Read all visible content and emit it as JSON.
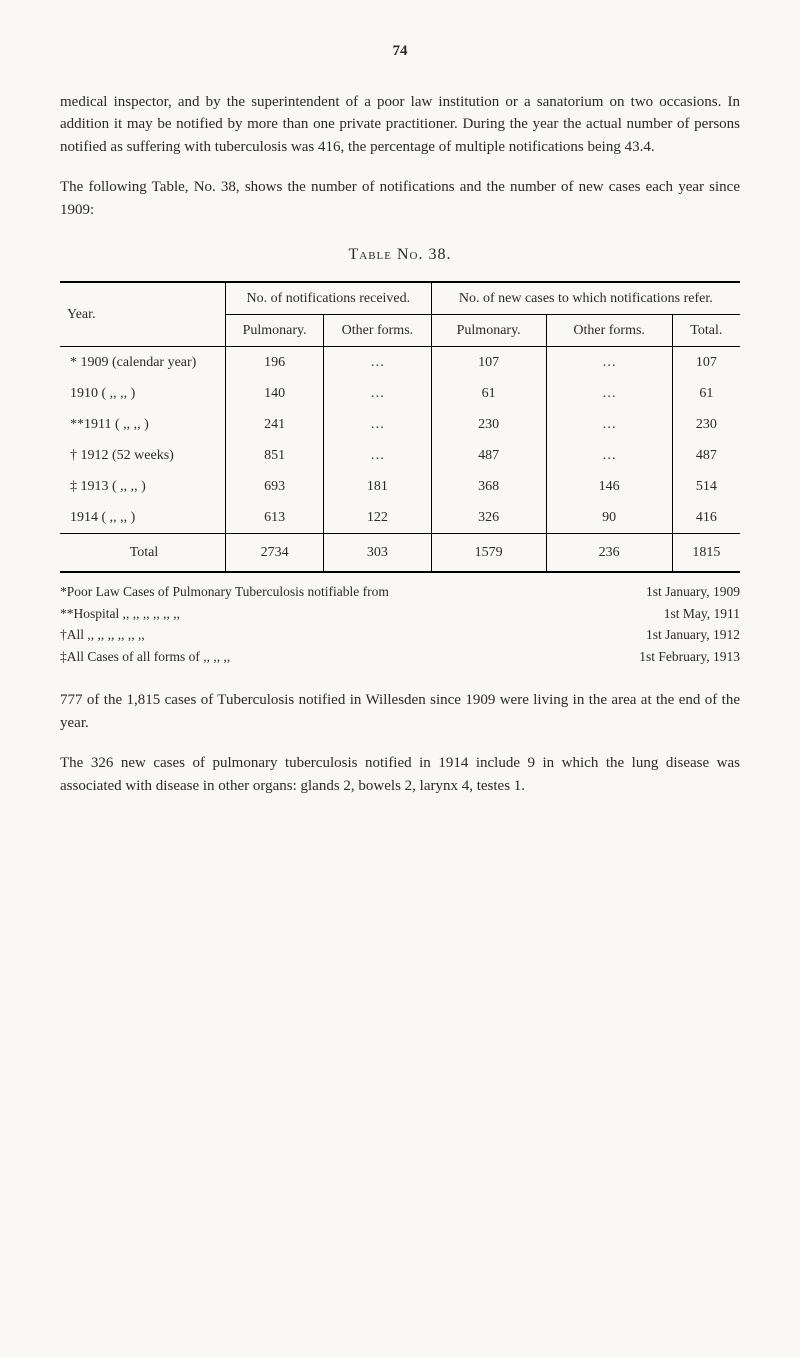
{
  "page_number": "74",
  "paragraphs": {
    "p1": "medical inspector, and by the superintendent of a poor law institution or a sanatorium on two occasions. In addition it may be notified by more than one private practitioner. During the year the actual number of persons notified as suffering with tuberculosis was 416, the percentage of multiple notifications being 43.4.",
    "p2": "The following Table, No. 38, shows the number of notifications and the number of new cases each year since 1909:",
    "p3": "777 of the 1,815 cases of Tuberculosis notified in Willesden since 1909 were living in the area at the end of the year.",
    "p4": "The 326 new cases of pulmonary tuberculosis notified in 1914 include 9 in which the lung disease was associated with disease in other organs: glands 2, bowels 2, larynx 4, testes 1."
  },
  "table": {
    "title": "Table No. 38.",
    "header": {
      "year": "Year.",
      "group1": "No. of notifications received.",
      "group2": "No. of new cases to which notifications refer.",
      "sub_pulmonary": "Pulmonary.",
      "sub_other": "Other forms.",
      "sub_total": "Total."
    },
    "rows": [
      {
        "year": "* 1909 (calendar year)",
        "a": "196",
        "b": "…",
        "c": "107",
        "d": "…",
        "e": "107"
      },
      {
        "year": "  1910 (  ,,        ,,  )",
        "a": "140",
        "b": "…",
        "c": "61",
        "d": "…",
        "e": "61"
      },
      {
        "year": "**1911 (  ,,        ,,  )",
        "a": "241",
        "b": "…",
        "c": "230",
        "d": "…",
        "e": "230"
      },
      {
        "year": "† 1912 (52 weeks)",
        "a": "851",
        "b": "…",
        "c": "487",
        "d": "…",
        "e": "487"
      },
      {
        "year": "‡ 1913 ( ,,    ,,  )",
        "a": "693",
        "b": "181",
        "c": "368",
        "d": "146",
        "e": "514"
      },
      {
        "year": "  1914 ( ,,    ,,  )",
        "a": "613",
        "b": "122",
        "c": "326",
        "d": "90",
        "e": "416"
      }
    ],
    "total": {
      "label": "Total",
      "a": "2734",
      "b": "303",
      "c": "1579",
      "d": "236",
      "e": "1815"
    }
  },
  "footnotes": {
    "f1_left": "*Poor Law Cases of Pulmonary Tuberculosis notifiable from",
    "f1_right": "1st January, 1909",
    "f2_left": "**Hospital   ,,              ,,              ,,              ,,              ,,              ,,",
    "f2_right": "1st May, 1911",
    "f3_left": "†All            ,,              ,,              ,,              ,,              ,,              ,,",
    "f3_right": "1st January, 1912",
    "f4_left": "‡All Cases of all forms of                              ,,              ,,              ,,",
    "f4_right": "1st February, 1913"
  }
}
